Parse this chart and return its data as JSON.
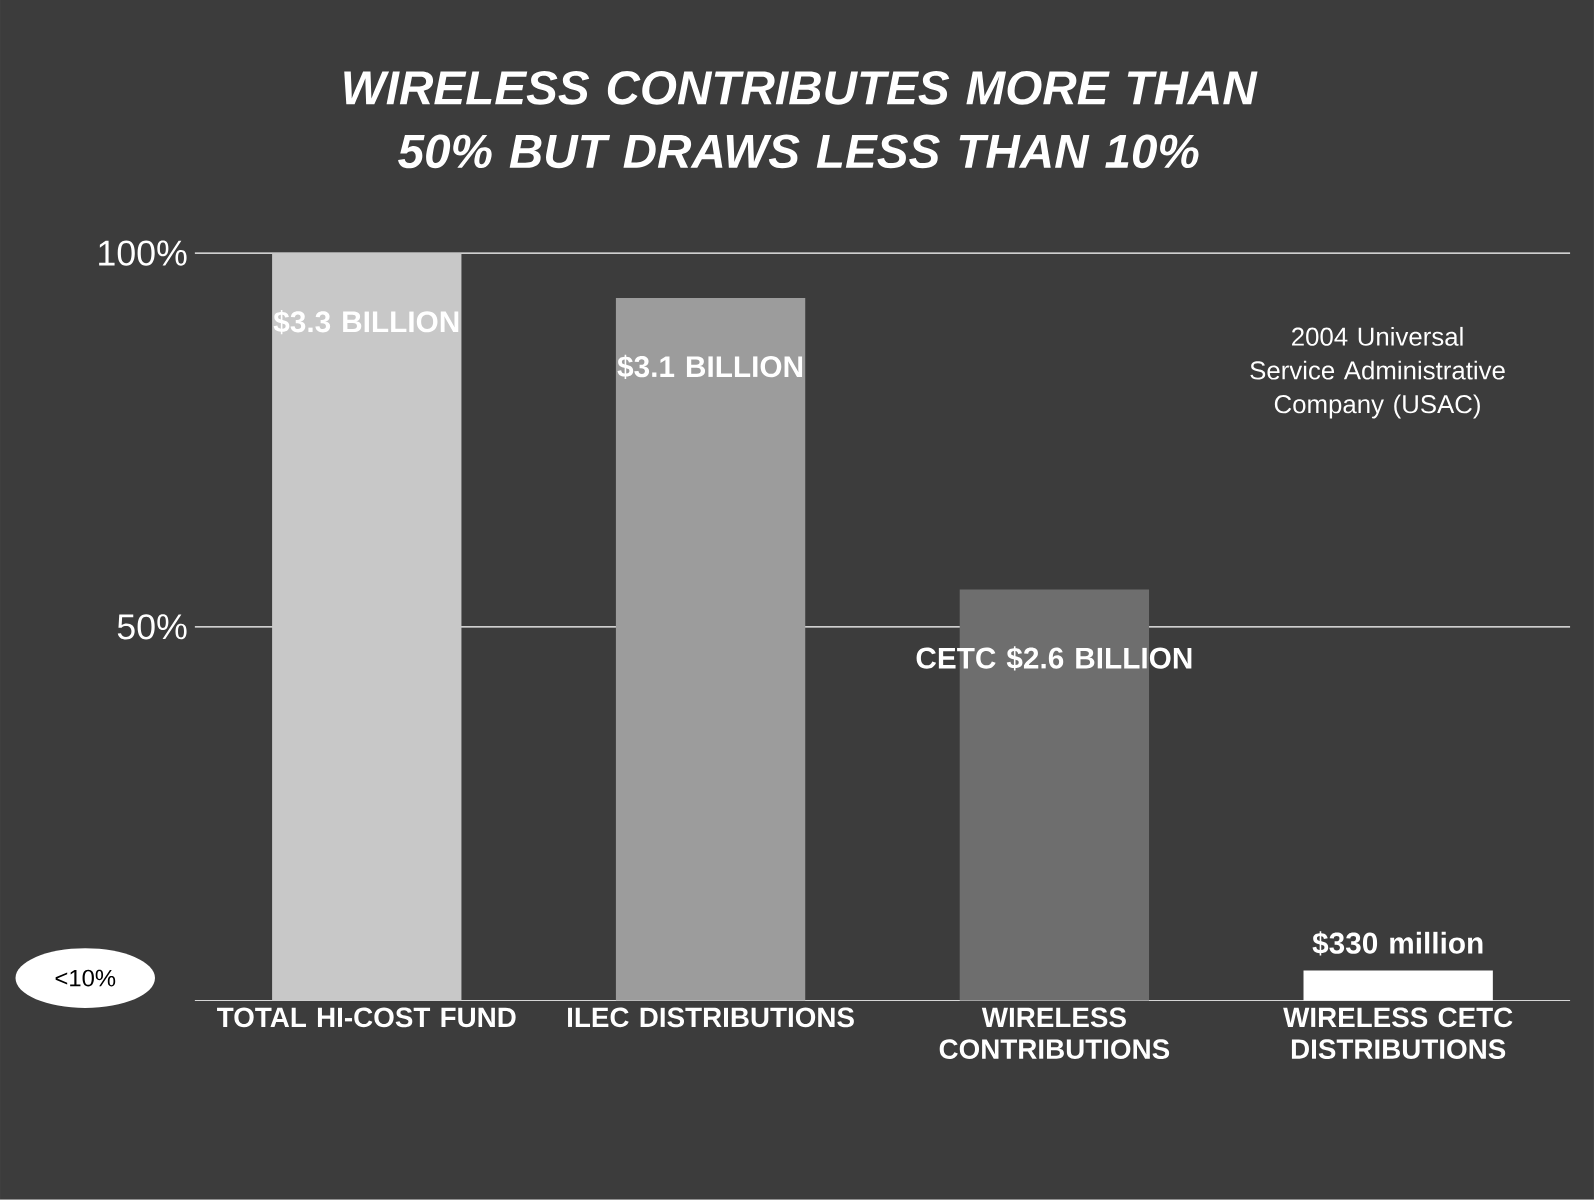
{
  "chart_data": {
    "type": "bar",
    "title": "WIRELESS CONTRIBUTES MORE THAN 50% BUT DRAWS LESS THAN 10%",
    "categories": [
      "TOTAL HI-COST FUND",
      "ILEC DISTRIBUTIONS",
      "WIRELESS CONTRIBUTIONS",
      "WIRELESS CETC DISTRIBUTIONS"
    ],
    "values": [
      100,
      94,
      55,
      4
    ],
    "colors": [
      "#c8c8c8",
      "#9c9c9c",
      "#6e6e6e",
      "#ffffff"
    ],
    "ylim": [
      0,
      100
    ],
    "yticks": [
      {
        "value": 50,
        "label": "50%"
      },
      {
        "value": 100,
        "label": "100%"
      }
    ],
    "grid": "y",
    "annotations": [
      "$3.3 BILLION",
      "$3.1 BILLION",
      "CETC $2.6 BILLION",
      "$330 million",
      "2004 Universal Service Administrative Company (USAC)",
      "<10%"
    ]
  }
}
